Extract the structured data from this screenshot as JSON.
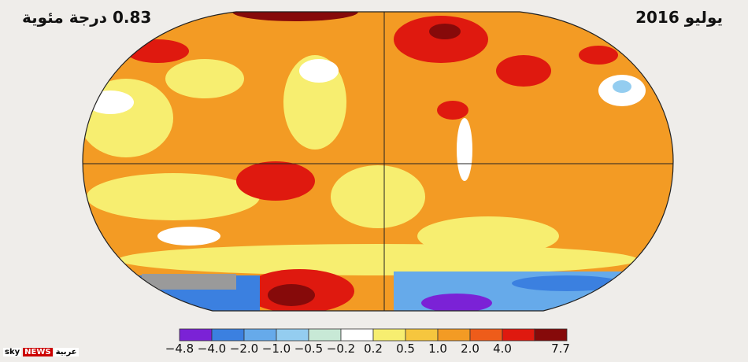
{
  "header": {
    "date": "يوليو 2016",
    "anomaly": "0.83 درجة مئوية"
  },
  "legend": {
    "labels": [
      "−4.8",
      "−4.0",
      "−2.0",
      "−1.0",
      "−0.5",
      "−0.2",
      "0.2",
      "0.5",
      "1.0",
      "2.0",
      "4.0",
      "7.7"
    ],
    "colors": [
      "#7b22d6",
      "#3b80e0",
      "#66aaea",
      "#94cdf0",
      "#c8e9d6",
      "#ffffff",
      "#f7ee70",
      "#f6c63e",
      "#f39b24",
      "#ee5c1a",
      "#df190f",
      "#860a0a"
    ]
  },
  "logo": {
    "brand": "sky",
    "name": "NEWS",
    "arabic": "عربية"
  }
}
